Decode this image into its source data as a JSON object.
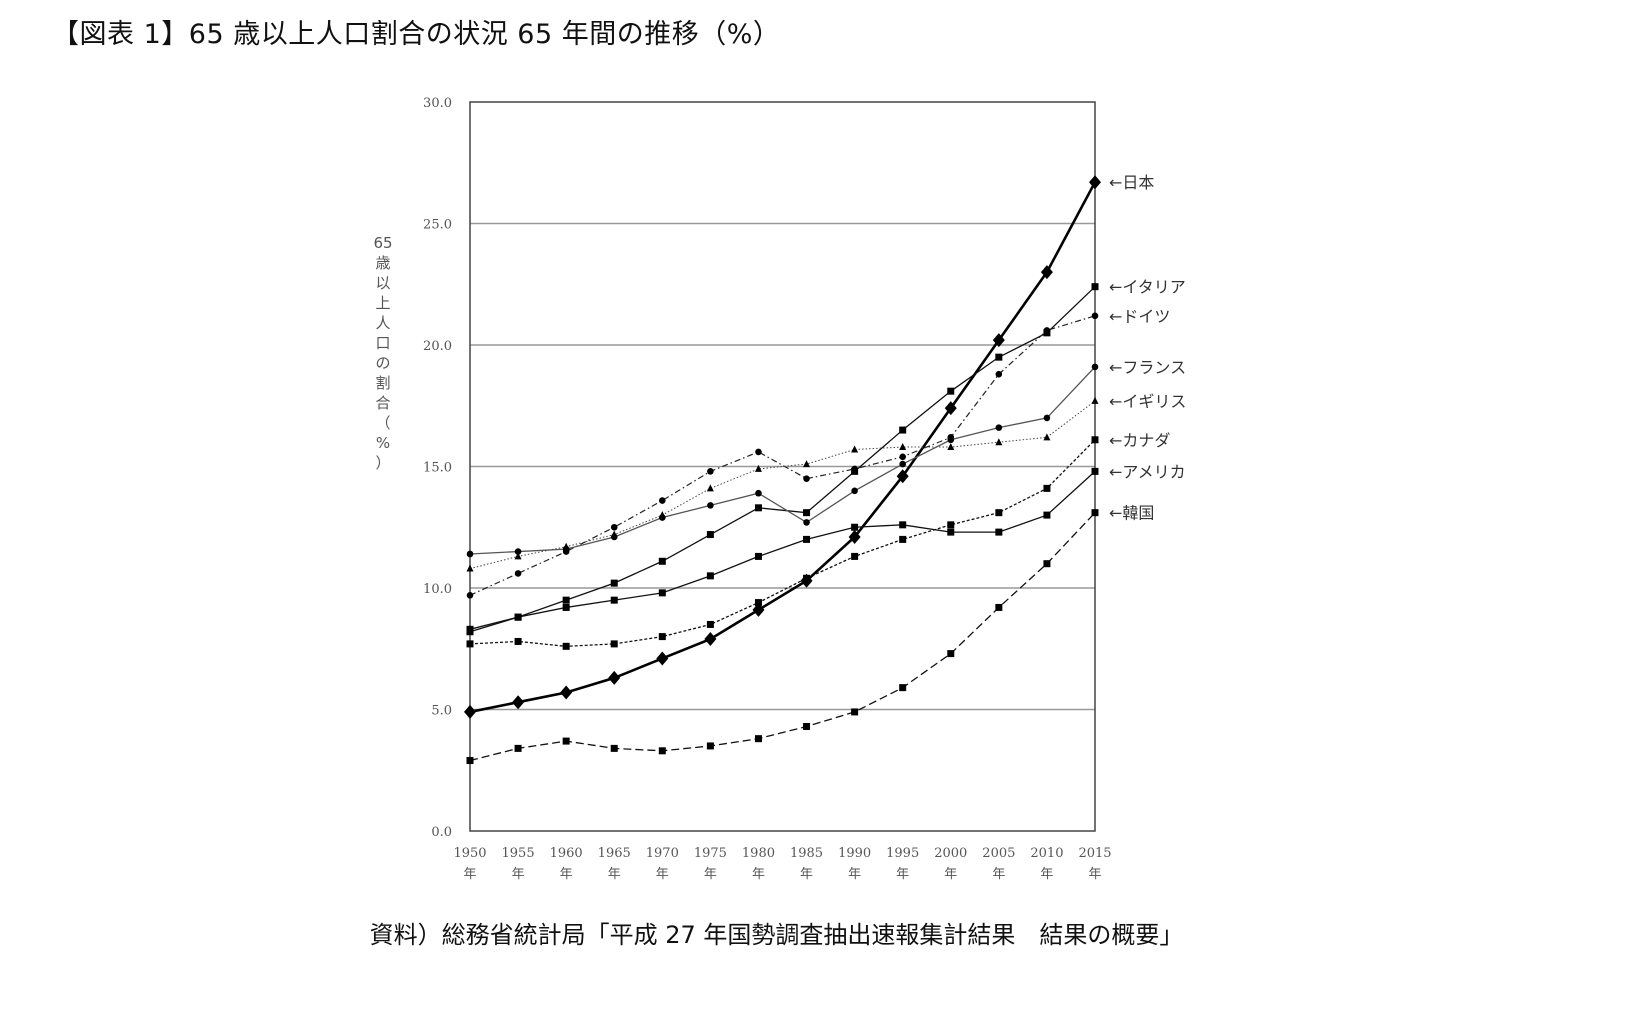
{
  "title": "【図表 1】65 歳以上人口割合の状況 65 年間の推移（%）",
  "source": "資料）総務省統計局「平成 27 年国勢調査抽出速報集計結果　結果の概要」",
  "chart_data": {
    "type": "line",
    "title": "【図表 1】65 歳以上人口割合の状況 65 年間の推移（%）",
    "xlabel": "",
    "ylabel": "65歳以上人口の割合（%）",
    "ylim": [
      0,
      30
    ],
    "yticks": [
      "0.0",
      "5.0",
      "10.0",
      "15.0",
      "20.0",
      "25.0",
      "30.0"
    ],
    "x": [
      1950,
      1955,
      1960,
      1965,
      1970,
      1975,
      1980,
      1985,
      1990,
      1995,
      2000,
      2005,
      2010,
      2015
    ],
    "x_suffix": "年",
    "grid": "horizontal",
    "series": [
      {
        "name": "←日本",
        "style": "solid-bold",
        "marker": "diamond",
        "values": [
          4.9,
          5.3,
          5.7,
          6.3,
          7.1,
          7.9,
          9.1,
          10.3,
          12.1,
          14.6,
          17.4,
          20.2,
          23.0,
          26.7
        ]
      },
      {
        "name": "←イタリア",
        "style": "solid",
        "marker": "square",
        "values": [
          8.3,
          8.8,
          9.5,
          10.2,
          11.1,
          12.2,
          13.3,
          13.1,
          14.8,
          16.5,
          18.1,
          19.5,
          20.5,
          22.4
        ]
      },
      {
        "name": "←ドイツ",
        "style": "dashdot",
        "marker": "circle",
        "values": [
          9.7,
          10.6,
          11.5,
          12.5,
          13.6,
          14.8,
          15.6,
          14.5,
          14.9,
          15.4,
          16.2,
          18.8,
          20.6,
          21.2
        ]
      },
      {
        "name": "←フランス",
        "style": "solid-gray",
        "marker": "circle",
        "values": [
          11.4,
          11.5,
          11.6,
          12.1,
          12.9,
          13.4,
          13.9,
          12.7,
          14.0,
          15.1,
          16.1,
          16.6,
          17.0,
          19.1
        ]
      },
      {
        "name": "←イギリス",
        "style": "dotted",
        "marker": "triangle",
        "values": [
          10.8,
          11.3,
          11.7,
          12.2,
          13.0,
          14.1,
          14.9,
          15.1,
          15.7,
          15.8,
          15.8,
          16.0,
          16.2,
          17.7
        ]
      },
      {
        "name": "←カナダ",
        "style": "shortdash",
        "marker": "square",
        "values": [
          7.7,
          7.8,
          7.6,
          7.7,
          8.0,
          8.5,
          9.4,
          10.4,
          11.3,
          12.0,
          12.6,
          13.1,
          14.1,
          16.1
        ]
      },
      {
        "name": "←アメリカ",
        "style": "solid",
        "marker": "square",
        "values": [
          8.2,
          8.8,
          9.2,
          9.5,
          9.8,
          10.5,
          11.3,
          12.0,
          12.5,
          12.6,
          12.3,
          12.3,
          13.0,
          14.8
        ]
      },
      {
        "name": "←韓国",
        "style": "dashed",
        "marker": "square",
        "values": [
          2.9,
          3.4,
          3.7,
          3.4,
          3.3,
          3.5,
          3.8,
          4.3,
          4.9,
          5.9,
          7.3,
          9.2,
          11.0,
          13.1
        ]
      }
    ]
  }
}
